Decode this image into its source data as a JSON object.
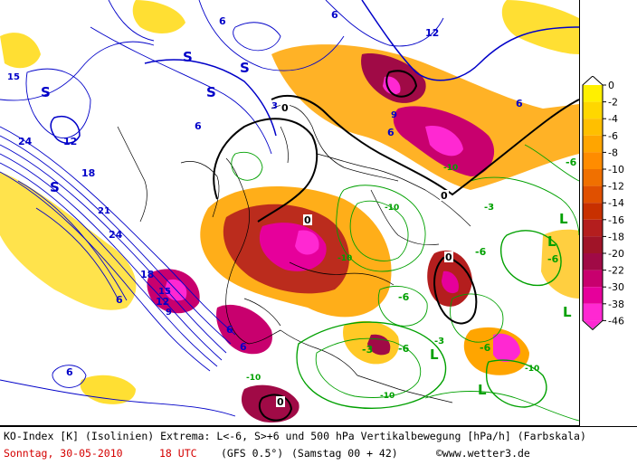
{
  "footer": {
    "line1": "KO-Index [K] (Isolinien) Extrema: L<-6, S>+6 und 500 hPa Vertikalbewegung [hPa/h] (Farbskala)",
    "date": "Sonntag, 30-05-2010",
    "time": "18 UTC",
    "model": "(GFS 0.5°)",
    "run": "(Samstag 00 + 42)",
    "copyright": "©www.wetter3.de"
  },
  "legend": {
    "levels": [
      "0",
      "-2",
      "-4",
      "-6",
      "-8",
      "-10",
      "-12",
      "-14",
      "-16",
      "-18",
      "-20",
      "-22",
      "-30",
      "-38",
      "-46"
    ],
    "colors": [
      "#ffff00",
      "#fff000",
      "#ffd700",
      "#ffbf00",
      "#ffa500",
      "#ff8c00",
      "#f07000",
      "#e05000",
      "#c83000",
      "#b41e1e",
      "#a01428",
      "#a00a46",
      "#c8006e",
      "#e6009b",
      "#ff28d2"
    ]
  },
  "map": {
    "colors": {
      "positive_isoline": "#0000c8",
      "negative_isoline": "#00a000",
      "zero_isoline": "#000000",
      "coast": "#000000"
    },
    "symbols": {
      "high_label": "S",
      "low_label": "L"
    },
    "isoline_labels": {
      "positive": [
        "3",
        "6",
        "9",
        "12",
        "15",
        "18",
        "21",
        "24"
      ],
      "zero": "0",
      "negative": [
        "-3",
        "-6",
        "-9",
        "-10"
      ]
    }
  }
}
